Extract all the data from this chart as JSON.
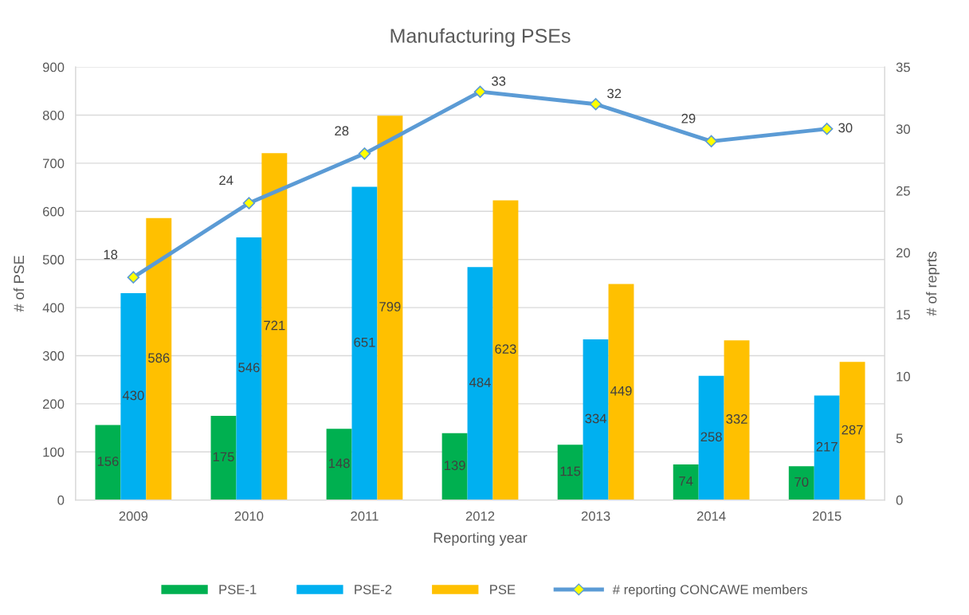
{
  "chart_data": {
    "type": "bar",
    "title": "Manufacturing PSEs",
    "xlabel": "Reporting year",
    "ylabel": "# of PSE",
    "y2label": "# of reprts",
    "categories": [
      "2009",
      "2010",
      "2011",
      "2012",
      "2013",
      "2014",
      "2015"
    ],
    "series": [
      {
        "name": "PSE-1",
        "color": "#00b050",
        "values": [
          156,
          175,
          148,
          139,
          115,
          74,
          70
        ]
      },
      {
        "name": "PSE-2",
        "color": "#00b0f0",
        "values": [
          430,
          546,
          651,
          484,
          334,
          258,
          217
        ]
      },
      {
        "name": "PSE",
        "color": "#ffc000",
        "values": [
          586,
          721,
          799,
          623,
          449,
          332,
          287
        ]
      },
      {
        "name": "# reporting CONCAWE members",
        "type": "line",
        "axis": "y2",
        "color": "#5b9bd5",
        "values": [
          18,
          24,
          28,
          33,
          32,
          29,
          30
        ]
      }
    ],
    "ylim": [
      0,
      900
    ],
    "yticks": [
      0,
      100,
      200,
      300,
      400,
      500,
      600,
      700,
      800,
      900
    ],
    "y2lim": [
      0,
      35
    ],
    "y2ticks": [
      0,
      5,
      10,
      15,
      20,
      25,
      30,
      35
    ],
    "data_labels": true,
    "grid": "y",
    "legend": "bottom",
    "marker": "diamond",
    "line_style": "solid"
  }
}
